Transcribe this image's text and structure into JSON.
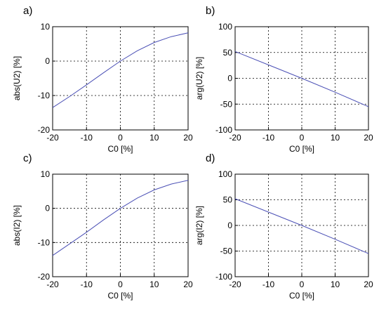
{
  "colors": {
    "series": "#4a4fb5",
    "grid": "#000000",
    "background": "#ffffff"
  },
  "chart_data": [
    {
      "panel_label": "a)",
      "type": "line",
      "xlabel": "C0 [%]",
      "ylabel": "abs(U2) [%]",
      "xlim": [
        -20,
        20
      ],
      "ylim": [
        -20,
        10
      ],
      "xticks": [
        -20,
        -10,
        0,
        10,
        20
      ],
      "yticks": [
        10,
        0,
        -10,
        -20
      ],
      "grid": true,
      "series": [
        {
          "x": [
            -20,
            -15,
            -10,
            -5,
            0,
            5,
            10,
            15,
            20
          ],
          "y": [
            -13.5,
            -10.3,
            -6.9,
            -3.4,
            0,
            3.0,
            5.4,
            7.1,
            8.2
          ]
        }
      ]
    },
    {
      "panel_label": "b)",
      "type": "line",
      "xlabel": "C0 [%]",
      "ylabel": "arg(U2) [%]",
      "xlim": [
        -20,
        20
      ],
      "ylim": [
        -100,
        100
      ],
      "xticks": [
        -20,
        -10,
        0,
        10,
        20
      ],
      "yticks": [
        100,
        50,
        0,
        -50,
        -100
      ],
      "grid": true,
      "series": [
        {
          "x": [
            -20,
            -10,
            0,
            10,
            20
          ],
          "y": [
            52,
            26,
            0,
            -27,
            -55
          ]
        }
      ]
    },
    {
      "panel_label": "c)",
      "type": "line",
      "xlabel": "C0 [%]",
      "ylabel": "abs(I2) [%]",
      "xlim": [
        -20,
        20
      ],
      "ylim": [
        -20,
        10
      ],
      "xticks": [
        -20,
        -10,
        0,
        10,
        20
      ],
      "yticks": [
        10,
        0,
        -10,
        -20
      ],
      "grid": true,
      "series": [
        {
          "x": [
            -20,
            -15,
            -10,
            -5,
            0,
            5,
            10,
            15,
            20
          ],
          "y": [
            -13.8,
            -10.4,
            -7.0,
            -3.4,
            0,
            3.0,
            5.4,
            7.1,
            8.2
          ]
        }
      ]
    },
    {
      "panel_label": "d)",
      "type": "line",
      "xlabel": "C0 [%]",
      "ylabel": "arg(I2) [%]",
      "xlim": [
        -20,
        20
      ],
      "ylim": [
        -100,
        100
      ],
      "xticks": [
        -20,
        -10,
        0,
        10,
        20
      ],
      "yticks": [
        100,
        50,
        0,
        -50,
        -100
      ],
      "grid": true,
      "series": [
        {
          "x": [
            -20,
            -10,
            0,
            10,
            20
          ],
          "y": [
            52,
            26,
            0,
            -27,
            -55
          ]
        }
      ]
    }
  ]
}
